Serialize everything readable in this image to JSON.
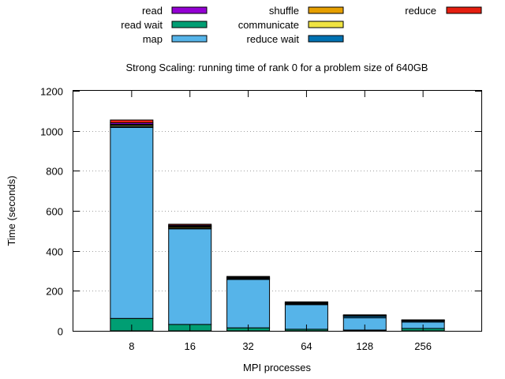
{
  "chart_data": {
    "type": "bar",
    "stacked": true,
    "title": "Strong Scaling: running time of rank 0 for a problem size of 640GB",
    "xlabel": "MPI processes",
    "ylabel": "Time (seconds)",
    "ylim": [
      0,
      1200
    ],
    "yticks": [
      0,
      200,
      400,
      600,
      800,
      1000,
      1200
    ],
    "grid": "horizontal-dotted",
    "legend_position": "top",
    "categories": [
      "8",
      "16",
      "32",
      "64",
      "128",
      "256"
    ],
    "series": [
      {
        "name": "read wait",
        "color": "#009e73",
        "values": [
          62,
          32,
          15,
          8,
          4,
          12
        ]
      },
      {
        "name": "map",
        "color": "#56b4e9",
        "values": [
          955,
          478,
          242,
          123,
          61,
          32
        ]
      },
      {
        "name": "reduce wait",
        "color": "#0072b2",
        "values": [
          5,
          4,
          3,
          4,
          8,
          5
        ]
      },
      {
        "name": "communicate",
        "color": "#f0e442",
        "values": [
          6,
          5,
          3,
          2,
          2,
          2
        ]
      },
      {
        "name": "shuffle",
        "color": "#e69f00",
        "values": [
          4,
          4,
          2,
          2,
          1,
          1
        ]
      },
      {
        "name": "read",
        "color": "#9400d3",
        "values": [
          8,
          5,
          4,
          4,
          2,
          2
        ]
      },
      {
        "name": "reduce",
        "color": "#e51e10",
        "values": [
          14,
          5,
          3,
          2,
          2,
          1
        ]
      }
    ],
    "legend_order": [
      "read",
      "shuffle",
      "reduce",
      "read wait",
      "communicate",
      "map",
      "reduce wait"
    ]
  }
}
